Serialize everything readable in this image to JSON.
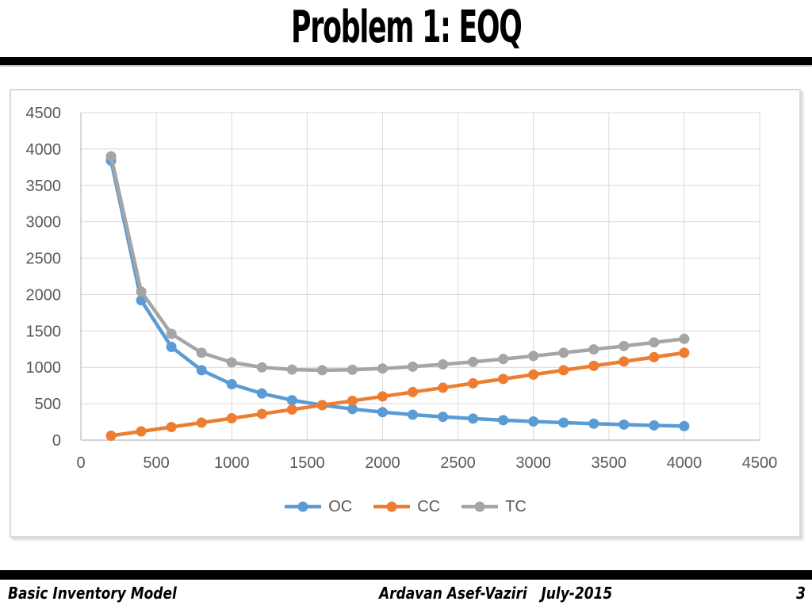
{
  "header": {
    "title": "Problem 1: EOQ"
  },
  "footer": {
    "left": "Basic Inventory Model",
    "center": "Ardavan Asef-Vaziri   July-2015",
    "page_number": "3"
  },
  "chart_data": {
    "type": "line",
    "x": [
      200,
      400,
      600,
      800,
      1000,
      1200,
      1400,
      1600,
      1800,
      2000,
      2200,
      2400,
      2600,
      2800,
      3000,
      3200,
      3400,
      3600,
      3800,
      4000
    ],
    "series": [
      {
        "name": "OC",
        "color": "#5B9BD5",
        "values": [
          3840,
          1920,
          1280,
          960,
          768,
          640,
          549,
          480,
          427,
          384,
          349,
          320,
          295,
          274,
          256,
          240,
          226,
          213,
          202,
          192
        ]
      },
      {
        "name": "CC",
        "color": "#ED7D31",
        "values": [
          60,
          120,
          180,
          240,
          300,
          360,
          420,
          480,
          540,
          600,
          660,
          720,
          780,
          840,
          900,
          960,
          1020,
          1080,
          1140,
          1200
        ]
      },
      {
        "name": "TC",
        "color": "#A5A5A5",
        "values": [
          3900,
          2040,
          1460,
          1200,
          1068,
          1000,
          969,
          960,
          967,
          984,
          1009,
          1040,
          1075,
          1114,
          1156,
          1200,
          1246,
          1293,
          1342,
          1392
        ]
      }
    ],
    "title": "",
    "xlabel": "",
    "ylabel": "",
    "xlim": [
      0,
      4500
    ],
    "ylim": [
      0,
      4500
    ],
    "xticks": [
      0,
      500,
      1000,
      1500,
      2000,
      2500,
      3000,
      3500,
      4000,
      4500
    ],
    "yticks": [
      0,
      500,
      1000,
      1500,
      2000,
      2500,
      3000,
      3500,
      4000,
      4500
    ],
    "grid": true,
    "grid_color": "#D9D9D9",
    "axis_line_color": "#C6C6C6",
    "tick_text_color": "#595959",
    "legend_position": "bottom",
    "marker": "circle"
  }
}
